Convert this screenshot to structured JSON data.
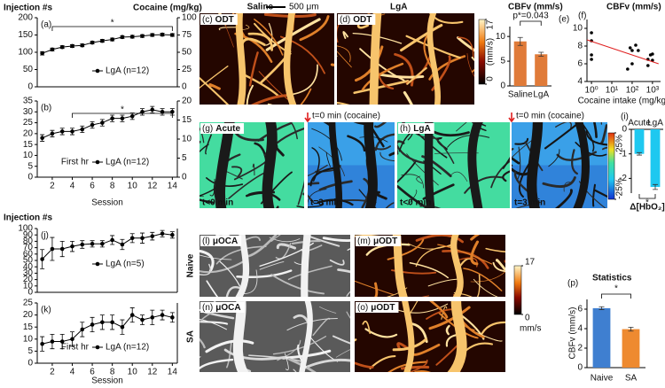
{
  "figure_text": {
    "scale_bar": "500 μm",
    "cocaine_onset": "t=0 min (cocaine)",
    "row_labels": [
      "Naive",
      "SA"
    ]
  },
  "colorbars": [
    {
      "ticks": [
        0,
        17
      ],
      "label": "(mm/s)",
      "colormap": "hot"
    },
    {
      "ticks": [
        {
          "value": 25,
          "label": "25%"
        },
        {
          "value": -25,
          "label": "-25%"
        }
      ],
      "colormap": "jet"
    },
    {
      "ticks": [
        0,
        17
      ],
      "label": "mm/s",
      "colormap": "hot"
    }
  ],
  "images": [
    {
      "panel": "(c)",
      "label": "ODT",
      "title": "Saline",
      "colormap": "hot"
    },
    {
      "panel": "(d)",
      "label": "ODT",
      "title": "LgA",
      "colormap": "hot"
    },
    {
      "panel": "(g)",
      "label": "Acute",
      "caption": "t<0 min",
      "colormap": "green"
    },
    {
      "caption": "t=3 min",
      "colormap": "blue"
    },
    {
      "panel": "(h)",
      "label": "LgA",
      "caption": "t<0 min",
      "colormap": "green"
    },
    {
      "caption": "t=3 min",
      "colormap": "blue"
    },
    {
      "panel": "(l)",
      "label": "μOCA",
      "colormap": "gray"
    },
    {
      "panel": "(m)",
      "label": "μODT",
      "colormap": "hot"
    },
    {
      "panel": "(n)",
      "label": "μOCA",
      "colormap": "gray"
    },
    {
      "panel": "(o)",
      "label": "μODT",
      "colormap": "hot"
    }
  ],
  "chart_data": [
    {
      "type": "line",
      "panel": "(a)",
      "ylabel": "Injection #s",
      "y2label": "Cocaine (mg/kg)",
      "x": [
        1,
        2,
        3,
        4,
        5,
        6,
        7,
        8,
        9,
        10,
        11,
        12,
        13,
        14
      ],
      "xlim": [
        0.5,
        14.5
      ],
      "ylim": [
        0,
        200
      ],
      "yticks": [
        0,
        50,
        100,
        150,
        200
      ],
      "y2lim": [
        0,
        100
      ],
      "y2ticks": [
        0,
        25,
        50,
        75,
        100
      ],
      "series": [
        {
          "name": "LgA (n=12)",
          "color": "#000000",
          "values": [
            97,
            108,
            115,
            118,
            120,
            128,
            133,
            137,
            144,
            145,
            147,
            150,
            151,
            150
          ],
          "errors": [
            5,
            4,
            4,
            4,
            4,
            4,
            4,
            4,
            4,
            4,
            4,
            4,
            4,
            4
          ]
        }
      ],
      "annotation": {
        "text": "*",
        "from": 2,
        "to": 14
      },
      "legend": "lower right"
    },
    {
      "type": "line",
      "panel": "(b)",
      "note": "First hr",
      "xlabel": "Session",
      "x": [
        1,
        2,
        3,
        4,
        5,
        6,
        7,
        8,
        9,
        10,
        11,
        12,
        13,
        14
      ],
      "xlim": [
        0.5,
        14.5
      ],
      "xticks": [
        2,
        4,
        6,
        8,
        10,
        12,
        14
      ],
      "ylim": [
        0,
        35
      ],
      "yticks": [
        0,
        5,
        10,
        15,
        20,
        25,
        30,
        35
      ],
      "y2lim": [
        0,
        20
      ],
      "y2ticks": [
        0,
        5,
        10,
        15,
        20
      ],
      "series": [
        {
          "name": "LgA (n=12)",
          "color": "#000000",
          "values": [
            18,
            20,
            21,
            21,
            22,
            24,
            25,
            27,
            27,
            28,
            30,
            31,
            30,
            30
          ],
          "errors": [
            1.5,
            1.5,
            1.5,
            1.5,
            1.5,
            1.5,
            1.5,
            1.5,
            1.5,
            1.5,
            1.5,
            1.5,
            1.5,
            1.5
          ]
        }
      ],
      "annotation": {
        "text": "*",
        "from": 4,
        "to": 14
      },
      "legend": "lower right"
    },
    {
      "type": "bar",
      "panel": "(e)",
      "title": "CBFv (mm/s)",
      "categories": [
        "Saline",
        "LgA"
      ],
      "values": [
        9,
        6.4
      ],
      "errors": [
        0.8,
        0.4
      ],
      "colors": [
        "#e07b39",
        "#e07b39"
      ],
      "ylim": [
        0,
        12
      ],
      "yticks": [
        0,
        5,
        10
      ],
      "annotation": {
        "text": "p*=0.043"
      }
    },
    {
      "type": "scatter",
      "panel": "(f)",
      "title": "CBFv (mm/s)",
      "xlabel": "Cocaine intake (mg/kg)",
      "log_x": true,
      "x": [
        1,
        1,
        1,
        1,
        60,
        80,
        100,
        100,
        150,
        200,
        600,
        600,
        800,
        1000,
        1000
      ],
      "y": [
        9.5,
        8.6,
        7,
        6.5,
        5.4,
        7.8,
        7.5,
        6,
        8.1,
        7.5,
        6.5,
        5.8,
        7,
        7.1,
        6.4
      ],
      "color": "#000000",
      "fit": {
        "x": [
          0.6,
          2000
        ],
        "y": [
          8.7,
          6.0
        ],
        "color": "#e02020"
      },
      "xlim": [
        0.6,
        2500
      ],
      "xticks": [
        {
          "value": 1,
          "label": "10⁰"
        },
        {
          "value": 10,
          "label": "10¹"
        },
        {
          "value": 100,
          "label": "10²"
        },
        {
          "value": 1000,
          "label": "10³"
        }
      ],
      "ylim": [
        4,
        11
      ],
      "yticks": [
        4,
        6,
        8,
        10
      ]
    },
    {
      "type": "bar",
      "panel": "(i)",
      "xlabel": "Δ[HbO₂]",
      "categories": [
        "Acute",
        "LgA"
      ],
      "values": [
        -1.0,
        -2.35
      ],
      "errors": [
        0.05,
        0.1
      ],
      "colors": [
        "#1ec8f0",
        "#1ec8f0"
      ],
      "ylim": [
        -2.6,
        0
      ],
      "yticks": [
        0,
        -1,
        -2
      ],
      "annotation": {
        "text": "*"
      }
    },
    {
      "type": "line",
      "panel": "(j)",
      "ylabel": "Injection #s",
      "x": [
        1,
        2,
        3,
        4,
        5,
        6,
        7,
        8,
        9,
        10,
        11,
        12,
        13,
        14
      ],
      "xlim": [
        0.5,
        14.5
      ],
      "ylim": [
        0,
        100
      ],
      "yticks": [
        0,
        10,
        20,
        30,
        40,
        50,
        60,
        70,
        80,
        90,
        100
      ],
      "series": [
        {
          "name": "LgA (n=5)",
          "color": "#000000",
          "values": [
            52,
            68,
            68,
            72,
            75,
            76,
            76,
            82,
            75,
            85,
            85,
            88,
            92,
            90
          ],
          "errors": [
            15,
            18,
            12,
            8,
            6,
            5,
            5,
            7,
            8,
            7,
            8,
            6,
            5,
            5
          ]
        }
      ],
      "legend": "center right"
    },
    {
      "type": "line",
      "panel": "(k)",
      "note": "First hr",
      "xlabel": "Session",
      "x": [
        1,
        2,
        3,
        4,
        5,
        6,
        7,
        8,
        9,
        10,
        11,
        12,
        13,
        14
      ],
      "xlim": [
        0.5,
        14.5
      ],
      "xticks": [
        2,
        4,
        6,
        8,
        10,
        12,
        14
      ],
      "ylim": [
        0,
        25
      ],
      "yticks": [
        0,
        5,
        10,
        15,
        20,
        25
      ],
      "series": [
        {
          "name": "LgA (n=12)",
          "color": "#000000",
          "values": [
            8,
            9,
            9,
            10,
            14,
            16,
            17,
            17,
            15,
            20,
            18,
            19,
            20,
            19
          ],
          "errors": [
            3,
            3,
            3,
            3,
            3,
            3,
            3,
            3,
            3,
            3,
            2,
            3,
            2,
            2
          ]
        }
      ],
      "legend": "lower right"
    },
    {
      "type": "bar",
      "panel": "(p)",
      "title": "Statistics",
      "ylabel": "CBFv (mm/s)",
      "categories": [
        "Naive",
        "SA"
      ],
      "values": [
        6.1,
        3.95
      ],
      "errors": [
        0.15,
        0.2
      ],
      "colors": [
        "#3f7fd0",
        "#ee8a30"
      ],
      "ylim": [
        0,
        7
      ],
      "yticks": [
        0,
        2,
        4,
        6
      ],
      "annotation": {
        "text": "*"
      }
    }
  ]
}
